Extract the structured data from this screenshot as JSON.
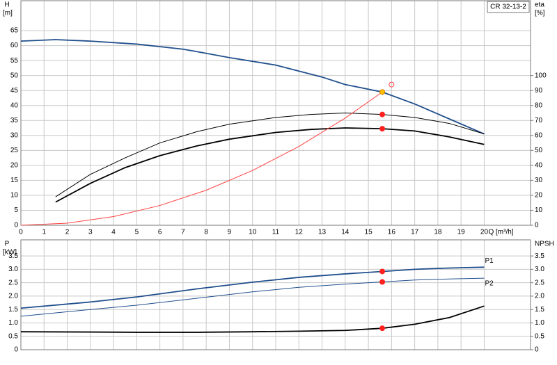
{
  "chart_data": [
    {
      "type": "line",
      "y_label": "H",
      "y_unit": "[m]",
      "y2_label": "eta",
      "y2_unit": "[%]",
      "x_label": "Q [m³/h]",
      "product": "CR 32-13-2",
      "xlim": [
        0,
        22
      ],
      "xticks": [
        0,
        1,
        2,
        3,
        4,
        5,
        6,
        7,
        8,
        9,
        10,
        11,
        12,
        13,
        14,
        15,
        16,
        17,
        18,
        19,
        20
      ],
      "show_xtick_labels": true,
      "ylim": [
        0,
        75
      ],
      "yticks": [
        0,
        5,
        10,
        15,
        20,
        25,
        30,
        35,
        40,
        45,
        50,
        55,
        60,
        65
      ],
      "y2lim": [
        0,
        150
      ],
      "y2ticks": [
        0,
        10,
        20,
        30,
        40,
        50,
        60,
        70,
        80,
        90,
        100
      ],
      "grid": true,
      "series": [
        {
          "color": "#1f4e8c",
          "line_width": 1.8,
          "x": [
            0,
            1.5,
            3,
            5,
            7,
            7.6,
            9,
            11,
            13,
            14,
            15.6,
            17,
            18.5,
            20
          ],
          "values": [
            61.5,
            62,
            61.5,
            60.5,
            58.8,
            58,
            56,
            53.5,
            49.5,
            47,
            44.5,
            40.5,
            35.5,
            30.5
          ]
        },
        {
          "color": "#000000",
          "line_width": 1,
          "axis": "y2",
          "x": [
            1.5,
            3,
            4.5,
            6,
            7.6,
            9,
            11,
            12.5,
            14,
            15.6,
            17,
            18.5,
            20
          ],
          "values": [
            19,
            34,
            45,
            55,
            62.5,
            67.5,
            72,
            74,
            75,
            74,
            72,
            68,
            61
          ]
        },
        {
          "color": "#000000",
          "line_width": 1.8,
          "axis": "y2",
          "x": [
            1.5,
            3,
            4.5,
            6,
            7.6,
            9,
            11,
            12.5,
            14,
            15.6,
            17,
            18.5,
            20
          ],
          "values": [
            15.5,
            28,
            38.5,
            46.5,
            53,
            57.5,
            62,
            64,
            65,
            64.5,
            63,
            59,
            54
          ]
        },
        {
          "color": "#ff4040",
          "line_width": 1,
          "x": [
            0,
            2,
            4,
            6,
            8,
            10,
            12,
            14,
            15.6
          ],
          "values": [
            0,
            0.7,
            2.9,
            6.6,
            11.7,
            18.3,
            26.3,
            35.8,
            44.5
          ]
        },
        {
          "color": "#ff2020",
          "marker": "dot",
          "axis": "y2",
          "x": [
            15.6,
            15.6
          ],
          "values": [
            74,
            64.5
          ]
        },
        {
          "color": "#ffc000",
          "marker": "dot",
          "x": [
            15.6
          ],
          "values": [
            44.5
          ]
        },
        {
          "color": "#ff4040",
          "marker": "open",
          "x": [
            16
          ],
          "values": [
            47
          ]
        }
      ]
    },
    {
      "type": "line",
      "y_label": "P",
      "y_unit": "[kW]",
      "y2_label": "NPSH",
      "xlim": [
        0,
        22
      ],
      "xticks": [
        0,
        1,
        2,
        3,
        4,
        5,
        6,
        7,
        8,
        9,
        10,
        11,
        12,
        13,
        14,
        15,
        16,
        17,
        18,
        19,
        20
      ],
      "show_xtick_labels": false,
      "ylim": [
        0,
        4.1
      ],
      "yticks": [
        0,
        0.5,
        {
          "value": 1,
          "label": "1.0"
        },
        1.5,
        {
          "value": 2,
          "label": "2.0"
        },
        2.5,
        {
          "value": 3,
          "label": "3.0"
        },
        3.5
      ],
      "y2lim": [
        0,
        4.1
      ],
      "y2ticks": [
        0,
        0.5,
        {
          "value": 1,
          "label": "1.0"
        },
        1.5,
        {
          "value": 2,
          "label": "2.0"
        },
        2.5,
        {
          "value": 3,
          "label": "3.0"
        },
        3.5
      ],
      "grid": true,
      "series": [
        {
          "name": "P1",
          "color": "#1f4e8c",
          "line_width": 1.8,
          "x": [
            0,
            3,
            5,
            7.6,
            10,
            12,
            14,
            15.6,
            17,
            18.5,
            20
          ],
          "values": [
            1.55,
            1.78,
            1.97,
            2.27,
            2.52,
            2.7,
            2.83,
            2.92,
            3.0,
            3.05,
            3.08
          ]
        },
        {
          "name": "P2",
          "color": "#1f4e8c",
          "line_width": 1,
          "x": [
            0,
            3,
            5,
            7.6,
            10,
            12,
            14,
            15.6,
            17,
            18.5,
            20
          ],
          "values": [
            1.25,
            1.5,
            1.66,
            1.92,
            2.16,
            2.33,
            2.45,
            2.53,
            2.6,
            2.64,
            2.67
          ]
        },
        {
          "color": "#000000",
          "line_width": 1.8,
          "axis": "y2",
          "x": [
            0,
            3,
            5,
            7.6,
            10,
            12,
            14,
            15.6,
            17,
            18.5,
            20
          ],
          "values": [
            0.67,
            0.66,
            0.65,
            0.65,
            0.67,
            0.69,
            0.72,
            0.8,
            0.95,
            1.2,
            1.63
          ]
        },
        {
          "color": "#ff2020",
          "marker": "dot",
          "x": [
            15.6,
            15.6
          ],
          "values": [
            2.92,
            2.53
          ]
        },
        {
          "color": "#ff2020",
          "marker": "dot",
          "axis": "y2",
          "x": [
            15.6
          ],
          "values": [
            0.8
          ]
        }
      ]
    }
  ]
}
